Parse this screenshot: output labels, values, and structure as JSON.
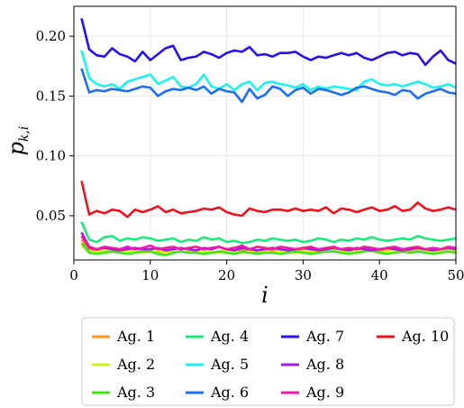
{
  "chart_data": {
    "type": "line",
    "xlabel": "i",
    "ylabel": "p",
    "ylabel_sub": "k,i",
    "xlim": [
      0,
      50
    ],
    "ylim": [
      0.013,
      0.225
    ],
    "xticks": [
      0,
      10,
      20,
      30,
      40,
      50
    ],
    "xtick_labels": [
      "0",
      "10",
      "20",
      "30",
      "40",
      "50"
    ],
    "yticks": [
      0.05,
      0.1,
      0.15,
      0.2
    ],
    "ytick_labels": [
      "0.05",
      "0.10",
      "0.15",
      "0.20"
    ],
    "grid": true,
    "legend_placement": "below",
    "x": [
      1,
      2,
      3,
      4,
      5,
      6,
      7,
      8,
      9,
      10,
      11,
      12,
      13,
      14,
      15,
      16,
      17,
      18,
      19,
      20,
      21,
      22,
      23,
      24,
      25,
      26,
      27,
      28,
      29,
      30,
      31,
      32,
      33,
      34,
      35,
      36,
      37,
      38,
      39,
      40,
      41,
      42,
      43,
      44,
      45,
      46,
      47,
      48,
      49,
      50
    ],
    "series": [
      {
        "name": "Ag. 1",
        "color": "#ff9a1f",
        "values": [
          0.03,
          0.022,
          0.021,
          0.02,
          0.021,
          0.019,
          0.02,
          0.021,
          0.02,
          0.021,
          0.02,
          0.019,
          0.021,
          0.02,
          0.021,
          0.02,
          0.021,
          0.019,
          0.02,
          0.021,
          0.02,
          0.022,
          0.021,
          0.02,
          0.021,
          0.02,
          0.021,
          0.02,
          0.022,
          0.021,
          0.02,
          0.021,
          0.022,
          0.021,
          0.02,
          0.021,
          0.022,
          0.023,
          0.021,
          0.02,
          0.021,
          0.022,
          0.021,
          0.02,
          0.021,
          0.022,
          0.021,
          0.02,
          0.021,
          0.022
        ]
      },
      {
        "name": "Ag. 2",
        "color": "#d7f21c",
        "values": [
          0.025,
          0.02,
          0.019,
          0.021,
          0.02,
          0.019,
          0.02,
          0.021,
          0.019,
          0.02,
          0.021,
          0.019,
          0.02,
          0.021,
          0.02,
          0.019,
          0.021,
          0.02,
          0.019,
          0.021,
          0.02,
          0.019,
          0.02,
          0.021,
          0.02,
          0.019,
          0.021,
          0.02,
          0.019,
          0.02,
          0.021,
          0.019,
          0.02,
          0.021,
          0.02,
          0.019,
          0.02,
          0.021,
          0.02,
          0.019,
          0.02,
          0.021,
          0.02,
          0.019,
          0.021,
          0.02,
          0.019,
          0.02,
          0.021,
          0.02
        ]
      },
      {
        "name": "Ag. 3",
        "color": "#3fe61f",
        "values": [
          0.027,
          0.019,
          0.018,
          0.019,
          0.02,
          0.019,
          0.018,
          0.019,
          0.02,
          0.02,
          0.018,
          0.017,
          0.019,
          0.02,
          0.019,
          0.019,
          0.018,
          0.019,
          0.02,
          0.019,
          0.018,
          0.02,
          0.019,
          0.018,
          0.019,
          0.019,
          0.018,
          0.019,
          0.02,
          0.019,
          0.018,
          0.019,
          0.02,
          0.02,
          0.019,
          0.018,
          0.019,
          0.02,
          0.021,
          0.019,
          0.018,
          0.019,
          0.02,
          0.019,
          0.02,
          0.019,
          0.018,
          0.019,
          0.02,
          0.019
        ]
      },
      {
        "name": "Ag. 4",
        "color": "#1fe87a",
        "values": [
          0.045,
          0.03,
          0.028,
          0.032,
          0.033,
          0.029,
          0.031,
          0.03,
          0.032,
          0.031,
          0.029,
          0.03,
          0.031,
          0.028,
          0.03,
          0.029,
          0.032,
          0.03,
          0.031,
          0.028,
          0.029,
          0.027,
          0.028,
          0.03,
          0.029,
          0.031,
          0.03,
          0.029,
          0.03,
          0.028,
          0.029,
          0.031,
          0.03,
          0.028,
          0.03,
          0.029,
          0.031,
          0.03,
          0.032,
          0.03,
          0.029,
          0.03,
          0.031,
          0.03,
          0.033,
          0.031,
          0.03,
          0.029,
          0.03,
          0.031
        ]
      },
      {
        "name": "Ag. 5",
        "color": "#1ff2ee",
        "values": [
          0.188,
          0.165,
          0.16,
          0.158,
          0.16,
          0.156,
          0.162,
          0.164,
          0.166,
          0.168,
          0.16,
          0.163,
          0.166,
          0.158,
          0.157,
          0.16,
          0.168,
          0.158,
          0.156,
          0.16,
          0.155,
          0.16,
          0.162,
          0.155,
          0.161,
          0.162,
          0.16,
          0.159,
          0.157,
          0.16,
          0.155,
          0.158,
          0.156,
          0.158,
          0.157,
          0.156,
          0.155,
          0.162,
          0.164,
          0.16,
          0.159,
          0.16,
          0.158,
          0.16,
          0.162,
          0.16,
          0.157,
          0.158,
          0.16,
          0.157
        ]
      },
      {
        "name": "Ag. 6",
        "color": "#1f6ef0",
        "values": [
          0.173,
          0.153,
          0.155,
          0.154,
          0.156,
          0.155,
          0.154,
          0.156,
          0.158,
          0.157,
          0.15,
          0.154,
          0.156,
          0.155,
          0.157,
          0.155,
          0.158,
          0.152,
          0.156,
          0.154,
          0.153,
          0.145,
          0.156,
          0.148,
          0.151,
          0.158,
          0.156,
          0.15,
          0.155,
          0.157,
          0.152,
          0.156,
          0.155,
          0.153,
          0.151,
          0.153,
          0.157,
          0.158,
          0.156,
          0.154,
          0.153,
          0.151,
          0.155,
          0.154,
          0.148,
          0.152,
          0.154,
          0.156,
          0.153,
          0.152
        ]
      },
      {
        "name": "Ag. 7",
        "color": "#2412e6",
        "values": [
          0.215,
          0.189,
          0.184,
          0.183,
          0.19,
          0.185,
          0.183,
          0.179,
          0.187,
          0.18,
          0.185,
          0.19,
          0.192,
          0.18,
          0.182,
          0.183,
          0.187,
          0.185,
          0.182,
          0.186,
          0.188,
          0.187,
          0.191,
          0.184,
          0.185,
          0.183,
          0.186,
          0.186,
          0.187,
          0.183,
          0.18,
          0.183,
          0.182,
          0.184,
          0.186,
          0.184,
          0.186,
          0.182,
          0.18,
          0.183,
          0.186,
          0.187,
          0.184,
          0.186,
          0.185,
          0.176,
          0.183,
          0.188,
          0.18,
          0.177
        ]
      },
      {
        "name": "Ag. 8",
        "color": "#a61ae6",
        "values": [
          0.036,
          0.024,
          0.022,
          0.023,
          0.022,
          0.021,
          0.022,
          0.023,
          0.022,
          0.022,
          0.023,
          0.021,
          0.022,
          0.023,
          0.022,
          0.021,
          0.023,
          0.022,
          0.024,
          0.022,
          0.021,
          0.023,
          0.022,
          0.021,
          0.022,
          0.023,
          0.022,
          0.021,
          0.022,
          0.023,
          0.022,
          0.021,
          0.022,
          0.023,
          0.022,
          0.021,
          0.023,
          0.022,
          0.021,
          0.022,
          0.023,
          0.022,
          0.021,
          0.022,
          0.023,
          0.022,
          0.021,
          0.022,
          0.023,
          0.022
        ]
      },
      {
        "name": "Ag. 9",
        "color": "#f01aa4",
        "values": [
          0.033,
          0.023,
          0.022,
          0.024,
          0.023,
          0.022,
          0.024,
          0.022,
          0.023,
          0.025,
          0.022,
          0.023,
          0.024,
          0.022,
          0.023,
          0.024,
          0.022,
          0.023,
          0.024,
          0.022,
          0.023,
          0.025,
          0.022,
          0.024,
          0.023,
          0.022,
          0.024,
          0.023,
          0.022,
          0.023,
          0.024,
          0.022,
          0.023,
          0.024,
          0.022,
          0.023,
          0.022,
          0.024,
          0.023,
          0.022,
          0.023,
          0.024,
          0.022,
          0.023,
          0.024,
          0.022,
          0.023,
          0.022,
          0.024,
          0.023
        ]
      },
      {
        "name": "Ag. 10",
        "color": "#e8141e",
        "values": [
          0.079,
          0.051,
          0.054,
          0.052,
          0.055,
          0.054,
          0.049,
          0.055,
          0.053,
          0.055,
          0.058,
          0.053,
          0.055,
          0.052,
          0.053,
          0.054,
          0.056,
          0.055,
          0.057,
          0.053,
          0.051,
          0.05,
          0.056,
          0.054,
          0.053,
          0.055,
          0.055,
          0.054,
          0.056,
          0.054,
          0.055,
          0.054,
          0.057,
          0.052,
          0.056,
          0.055,
          0.053,
          0.055,
          0.057,
          0.054,
          0.055,
          0.058,
          0.054,
          0.055,
          0.061,
          0.056,
          0.054,
          0.055,
          0.057,
          0.055
        ]
      }
    ]
  }
}
